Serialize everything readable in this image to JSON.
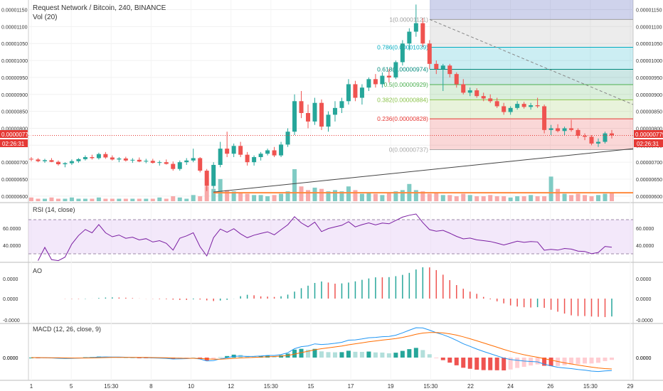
{
  "header": {
    "title": "Request Network / Bitcoin, 240, BINANCE",
    "vol_label": "Vol (20)"
  },
  "colors": {
    "up": "#26a69a",
    "down": "#ef5350",
    "rsi": "#7b1fa2",
    "rsi_band": "#e9d5f5",
    "macd_line": "#2196f3",
    "signal_line": "#ff6d00",
    "fib_0": "#a8a8a8",
    "fib_236": "#e53935",
    "fib_382": "#8bc34a",
    "fib_5": "#4caf50",
    "fib_618": "#00897b",
    "fib_786": "#00acc1",
    "fib_1": "#9e9e9e",
    "hline": "#ff8a3d",
    "trend": "#555555",
    "last_price_bg": "#e53935"
  },
  "price_axis": {
    "ticks": [
      "0.00001150",
      "0.00001100",
      "0.00001050",
      "0.00001000",
      "0.00000950",
      "0.00000900",
      "0.00000850",
      "0.00000800",
      "0.00000750",
      "0.00000700",
      "0.00000650",
      "0.00000600"
    ],
    "left_ticks": [
      "0.00001150",
      "0.00001100",
      "0.00001050",
      "0.00001000",
      "0.00000950",
      "0.00000900",
      "0.00000850",
      "0.00000800",
      "0.00000700",
      "0.00000650",
      "0.00000600"
    ],
    "last_price": "0.00000779",
    "countdown": "02:26:31"
  },
  "fib": [
    {
      "label": "1(0.00001121)",
      "value": 1.121e-05,
      "color_key": "fib_1"
    },
    {
      "label": "0.786(0.00001039)",
      "value": 1.039e-05,
      "color_key": "fib_786"
    },
    {
      "label": "0.618(0.00000974)",
      "value": 9.74e-06,
      "color_key": "fib_618"
    },
    {
      "label": "0.5(0.00000929)",
      "value": 9.29e-06,
      "color_key": "fib_5"
    },
    {
      "label": "0.382(0.00000884)",
      "value": 8.84e-06,
      "color_key": "fib_382"
    },
    {
      "label": "0.236(0.00000828)",
      "value": 8.28e-06,
      "color_key": "fib_236"
    },
    {
      "label": "0(0.00000737)",
      "value": 7.37e-06,
      "color_key": "fib_0"
    }
  ],
  "rsi": {
    "label": "RSI (14, close)",
    "ticks": [
      "60.0000",
      "40.0000"
    ],
    "upper": 70,
    "lower": 30
  },
  "ao": {
    "label": "AO",
    "ticks": [
      "0.0000",
      "0.0000",
      "-0.0000"
    ]
  },
  "macd": {
    "label": "MACD (12, 26, close, 9)",
    "ticks": [
      "0.0000",
      "0.0000"
    ]
  },
  "time_axis": {
    "labels": [
      "1",
      "5",
      "15:30",
      "8",
      "10",
      "12",
      "15:30",
      "15",
      "17",
      "19",
      "15:30",
      "22",
      "24",
      "26",
      "15:30",
      "29"
    ]
  },
  "chart_data": {
    "type": "candlestick",
    "ylim": [
      5.85e-06,
      1.17e-05
    ],
    "horizontal_level": 6.1e-06,
    "candles": [
      [
        7.1e-06,
        7.15e-06,
        7.03e-06,
        7.08e-06
      ],
      [
        7.08e-06,
        7.12e-06,
        7e-06,
        7.03e-06
      ],
      [
        7.03e-06,
        7.1e-06,
        6.98e-06,
        7.06e-06
      ],
      [
        7.06e-06,
        7.12e-06,
        7e-06,
        7.01e-06
      ],
      [
        7.01e-06,
        7.05e-06,
        6.9e-06,
        6.94e-06
      ],
      [
        6.94e-06,
        7e-06,
        6.85e-06,
        6.97e-06
      ],
      [
        6.97e-06,
        7.08e-06,
        6.92e-06,
        7.03e-06
      ],
      [
        7.03e-06,
        7.12e-06,
        6.98e-06,
        7.09e-06
      ],
      [
        7.09e-06,
        7.2e-06,
        7.05e-06,
        7.15e-06
      ],
      [
        7.15e-06,
        7.22e-06,
        7.08e-06,
        7.12e-06
      ],
      [
        7.12e-06,
        7.28e-06,
        7.08e-06,
        7.24e-06
      ],
      [
        7.24e-06,
        7.3e-06,
        7.1e-06,
        7.14e-06
      ],
      [
        7.14e-06,
        7.2e-06,
        7.05e-06,
        7.08e-06
      ],
      [
        7.08e-06,
        7.15e-06,
        7e-06,
        7.11e-06
      ],
      [
        7.11e-06,
        7.16e-06,
        7.02e-06,
        7.05e-06
      ],
      [
        7.05e-06,
        7.12e-06,
        6.98e-06,
        7.07e-06
      ],
      [
        7.07e-06,
        7.14e-06,
        7e-06,
        7.02e-06
      ],
      [
        7.02e-06,
        7.1e-06,
        6.97e-06,
        7.04e-06
      ],
      [
        7.04e-06,
        7.1e-06,
        6.96e-06,
        6.98e-06
      ],
      [
        6.98e-06,
        7.05e-06,
        6.9e-06,
        7e-06
      ],
      [
        7e-06,
        7.08e-06,
        6.93e-06,
        6.95e-06
      ],
      [
        6.95e-06,
        7.02e-06,
        6.75e-06,
        6.8e-06
      ],
      [
        6.8e-06,
        7.05e-06,
        6.75e-06,
        7e-06
      ],
      [
        7e-06,
        7.12e-06,
        6.92e-06,
        7.05e-06
      ],
      [
        7.05e-06,
        7.4e-06,
        7e-06,
        7.12e-06
      ],
      [
        7.12e-06,
        7.15e-06,
        6.7e-06,
        6.75e-06
      ],
      [
        6.75e-06,
        6.8e-06,
        6.15e-06,
        6.3e-06
      ],
      [
        6.3e-06,
        7e-06,
        6.22e-06,
        6.92e-06
      ],
      [
        6.92e-06,
        7.6e-06,
        6.85e-06,
        7.4e-06
      ],
      [
        7.4e-06,
        7.9e-06,
        7.15e-06,
        7.25e-06
      ],
      [
        7.25e-06,
        7.55e-06,
        7.15e-06,
        7.48e-06
      ],
      [
        7.48e-06,
        7.6e-06,
        7.15e-06,
        7.22e-06
      ],
      [
        7.22e-06,
        7.3e-06,
        6.9e-06,
        7e-06
      ],
      [
        7e-06,
        7.2e-06,
        6.9e-06,
        7.15e-06
      ],
      [
        7.15e-06,
        7.3e-06,
        7.05e-06,
        7.25e-06
      ],
      [
        7.25e-06,
        7.4e-06,
        7.2e-06,
        7.35e-06
      ],
      [
        7.35e-06,
        7.45e-06,
        7.15e-06,
        7.2e-06
      ],
      [
        7.2e-06,
        7.6e-06,
        7.15e-06,
        7.52e-06
      ],
      [
        7.52e-06,
        8e-06,
        7.45e-06,
        7.9e-06
      ],
      [
        7.9e-06,
        9e-06,
        7.8e-06,
        8.8e-06
      ],
      [
        8.8e-06,
        9.1e-06,
        8.3e-06,
        8.45e-06
      ],
      [
        8.45e-06,
        8.7e-06,
        8e-06,
        8.2e-06
      ],
      [
        8.2e-06,
        8.9e-06,
        8.1e-06,
        8.75e-06
      ],
      [
        8.75e-06,
        8.85e-06,
        7.95e-06,
        8.05e-06
      ],
      [
        8.05e-06,
        8.5e-06,
        7.9e-06,
        8.4e-06
      ],
      [
        8.4e-06,
        8.8e-06,
        8.2e-06,
        8.6e-06
      ],
      [
        8.6e-06,
        8.9e-06,
        8.45e-06,
        8.8e-06
      ],
      [
        8.8e-06,
        9.45e-06,
        8.7e-06,
        9.3e-06
      ],
      [
        9.3e-06,
        9.4e-06,
        8.8e-06,
        8.9e-06
      ],
      [
        8.9e-06,
        9.3e-06,
        8.7e-06,
        9.2e-06
      ],
      [
        9.2e-06,
        9.5e-06,
        9.1e-06,
        9.45e-06
      ],
      [
        9.45e-06,
        9.6e-06,
        9.2e-06,
        9.3e-06
      ],
      [
        9.3e-06,
        9.65e-06,
        9.2e-06,
        9.55e-06
      ],
      [
        9.55e-06,
        9.75e-06,
        9.35e-06,
        9.5e-06
      ],
      [
        9.5e-06,
        1e-05,
        9.45e-06,
        9.95e-06
      ],
      [
        9.95e-06,
        1.06e-05,
        9.85e-06,
        1.05e-05
      ],
      [
        1.05e-05,
        1.095e-05,
        1.03e-05,
        1.085e-05
      ],
      [
        1.085e-05,
        1.165e-05,
        1.07e-05,
        1.11e-05
      ],
      [
        1.11e-05,
        1.125e-05,
        1.04e-05,
        1.05e-05
      ],
      [
        1.05e-05,
        1.06e-05,
        9.75e-06,
        9.9e-06
      ],
      [
        9.9e-06,
        1e-05,
        9.6e-06,
        9.75e-06
      ],
      [
        9.75e-06,
        9.9e-06,
        9.1e-06,
        9.85e-06
      ],
      [
        9.85e-06,
        9.9e-06,
        9.5e-06,
        9.6e-06
      ],
      [
        9.6e-06,
        9.65e-06,
        9.2e-06,
        9.3e-06
      ],
      [
        9.3e-06,
        9.45e-06,
        9e-06,
        9.05e-06
      ],
      [
        9.05e-06,
        9.2e-06,
        8.95e-06,
        9.12e-06
      ],
      [
        9.12e-06,
        9.18e-06,
        8.9e-06,
        8.95e-06
      ],
      [
        8.95e-06,
        9.05e-06,
        8.8e-06,
        8.88e-06
      ],
      [
        8.88e-06,
        9e-06,
        8.75e-06,
        8.8e-06
      ],
      [
        8.8e-06,
        8.9e-06,
        8.6e-06,
        8.65e-06
      ],
      [
        8.65e-06,
        8.75e-06,
        8.4e-06,
        8.48e-06
      ],
      [
        8.48e-06,
        8.65e-06,
        8.4e-06,
        8.6e-06
      ],
      [
        8.6e-06,
        8.8e-06,
        8.55e-06,
        8.72e-06
      ],
      [
        8.72e-06,
        8.78e-06,
        8.58e-06,
        8.63e-06
      ],
      [
        8.63e-06,
        8.75e-06,
        8.55e-06,
        8.68e-06
      ],
      [
        8.68e-06,
        8.9e-06,
        8.6e-06,
        8.65e-06
      ],
      [
        8.65e-06,
        8.7e-06,
        7.85e-06,
        7.95e-06
      ],
      [
        7.95e-06,
        8.1e-06,
        7.8e-06,
        8e-06
      ],
      [
        8e-06,
        8.12e-06,
        7.88e-06,
        7.92e-06
      ],
      [
        7.92e-06,
        8.05e-06,
        7.8e-06,
        8e-06
      ],
      [
        8e-06,
        8.25e-06,
        7.9e-06,
        7.95e-06
      ],
      [
        7.95e-06,
        8e-06,
        7.7e-06,
        7.78e-06
      ],
      [
        7.78e-06,
        7.85e-06,
        7.65e-06,
        7.75e-06
      ],
      [
        7.75e-06,
        7.8e-06,
        7.5e-06,
        7.55e-06
      ],
      [
        7.55e-06,
        7.7e-06,
        7.45e-06,
        7.6e-06
      ],
      [
        7.6e-06,
        7.9e-06,
        7.55e-06,
        7.85e-06
      ],
      [
        7.85e-06,
        7.95e-06,
        7.7e-06,
        7.79e-06
      ]
    ],
    "volume": [
      3,
      2,
      2,
      3,
      2,
      2,
      3,
      2,
      2,
      2,
      3,
      2,
      2,
      2,
      2,
      2,
      2,
      2,
      2,
      3,
      2,
      4,
      3,
      2,
      5,
      4,
      12,
      10,
      18,
      9,
      8,
      7,
      6,
      5,
      5,
      4,
      5,
      6,
      8,
      26,
      12,
      9,
      11,
      10,
      8,
      9,
      8,
      12,
      9,
      6,
      7,
      6,
      5,
      7,
      8,
      9,
      14,
      9,
      8,
      6,
      7,
      5,
      5,
      4,
      6,
      5,
      4,
      4,
      5,
      4,
      4,
      3,
      4,
      4,
      5,
      4,
      4,
      20,
      10,
      6,
      5,
      6,
      5,
      4,
      5,
      6,
      7
    ]
  }
}
